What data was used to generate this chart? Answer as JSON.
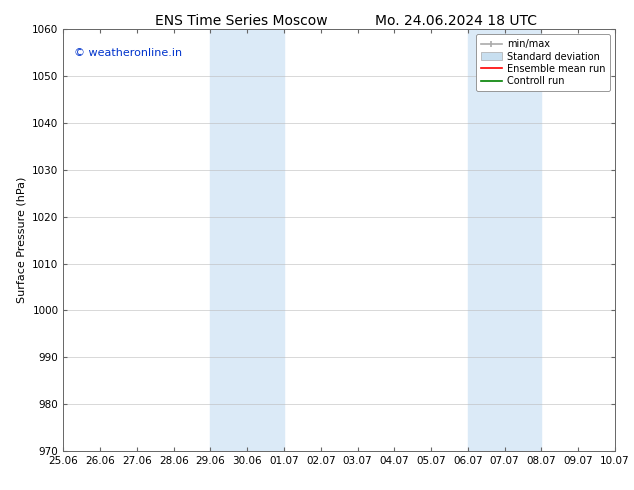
{
  "title_left": "ENS Time Series Moscow",
  "title_right": "Mo. 24.06.2024 18 UTC",
  "ylabel": "Surface Pressure (hPa)",
  "ylim": [
    970,
    1060
  ],
  "yticks": [
    970,
    980,
    990,
    1000,
    1010,
    1020,
    1030,
    1040,
    1050,
    1060
  ],
  "xlim_start": 0,
  "xlim_end": 15,
  "xtick_labels": [
    "25.06",
    "26.06",
    "27.06",
    "28.06",
    "29.06",
    "30.06",
    "01.07",
    "02.07",
    "03.07",
    "04.07",
    "05.07",
    "06.07",
    "07.07",
    "08.07",
    "09.07",
    "10.07"
  ],
  "xtick_positions": [
    0,
    1,
    2,
    3,
    4,
    5,
    6,
    7,
    8,
    9,
    10,
    11,
    12,
    13,
    14,
    15
  ],
  "shaded_bands": [
    {
      "x_start": 4,
      "x_end": 6,
      "color": "#dbeaf7"
    },
    {
      "x_start": 11,
      "x_end": 13,
      "color": "#dbeaf7"
    }
  ],
  "copyright_text": "© weatheronline.in",
  "copyright_color": "#0033cc",
  "legend_labels": [
    "min/max",
    "Standard deviation",
    "Ensemble mean run",
    "Controll run"
  ],
  "legend_colors_line": [
    "#aaaaaa",
    "#c8dff0",
    "red",
    "green"
  ],
  "bg_color": "#ffffff",
  "grid_color": "#bbbbbb",
  "title_fontsize": 10,
  "axis_label_fontsize": 8,
  "tick_fontsize": 7.5,
  "legend_fontsize": 7,
  "copyright_fontsize": 8
}
